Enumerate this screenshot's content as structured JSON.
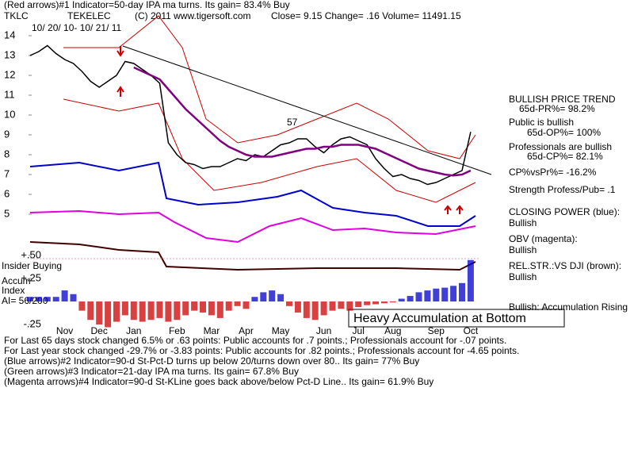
{
  "header": {
    "indicator_1": "(Red arrows)#1 Indicator=50-day IPA ma turns. Its gain= 83.4% Buy",
    "ticker": "TKLC",
    "company": "TEKELEC",
    "source": "(C) 2011  www.tigersoft.com",
    "quote": "Close=  9.15  Change= .16 Volume= 11491.15",
    "date_range": "10/ 20/ 10- 10/ 21/ 11"
  },
  "annotations": {
    "peak_label": "57",
    "box": "Heavy Accumulation at Bottom",
    "insider": "Insider Buying",
    "accum_1": "Accum",
    "accum_2": "Index",
    "ai": "AI= 56/200"
  },
  "right_panel": [
    "BULLISH PRICE TREND",
    "65d-PR%= 98.2%",
    "Public is bullish",
    "65d-OP%= 100%",
    "Professionals are bullish",
    "65d-CP%= 82.1%",
    "CP%vsPr%= -16.2%",
    "Strength Profess/Pub= .1",
    "CLOSING POWER (blue):",
    "Bullish",
    "OBV (magenta):",
    "Bullish",
    "REL.STR.:VS DJI (brown):",
    "Bullish",
    "Bullish: Accumulation Rising"
  ],
  "footer": [
    "For Last 65 days stock changed  6.5% or  .63 points:  Public accounts for  .7 points.;  Professionals account for -.07 points.",
    "For Last year stock changed -29.7% or -3.83 points:  Public accounts for  .82 points.;  Professionals account for -4.65 points.",
    "(Blue arrows)#2 Indicator=90-d St-Pct-D turns up below 20/turns down over 80.. Its gain= 77% Buy",
    "(Green arrows)#3 Indicator=21-day IPA ma turns. Its gain= 67.8% Buy",
    "(Magenta arrows)#4 Indicator=90-d St-KLine goes back above/below Pct-D Line.. Its gain= 61.9% Buy"
  ],
  "chart_data": [
    {
      "type": "line",
      "categories": [
        null,
        null,
        null,
        null,
        "Nov",
        null,
        null,
        null,
        "Dec",
        null,
        null,
        null,
        "Jan",
        null,
        null,
        null,
        null,
        "Feb",
        null,
        null,
        null,
        "Mar",
        null,
        null,
        null,
        "Apr",
        null,
        null,
        null,
        "May",
        null,
        null,
        null,
        null,
        "Jun",
        null,
        null,
        null,
        "Jul",
        null,
        null,
        null,
        "Aug",
        null,
        null,
        null,
        null,
        "Sep",
        null,
        null,
        null,
        "Oct"
      ],
      "series": [
        {
          "color": "#000000",
          "values": [
            13.0,
            13.2,
            13.5,
            13.1,
            12.8,
            12.6,
            12.2,
            11.7,
            11.4,
            11.7,
            12.0,
            12.7,
            12.6,
            12.3,
            12.0,
            11.6,
            8.6,
            8.0,
            7.6,
            7.5,
            7.3,
            7.4,
            7.4,
            7.6,
            7.8,
            7.7,
            8.0,
            7.9,
            8.2,
            8.5,
            8.6,
            8.8,
            8.8,
            8.4,
            8.1,
            8.5,
            8.8,
            8.9,
            8.7,
            8.5,
            7.8,
            7.3,
            6.9,
            7.0,
            6.8,
            6.7,
            6.5,
            6.6,
            6.8,
            7.0,
            7.2,
            9.15
          ]
        },
        {
          "color": "#800080",
          "values": [
            null,
            null,
            null,
            null,
            null,
            null,
            null,
            null,
            null,
            null,
            null,
            null,
            12.4,
            12.2,
            12.0,
            11.8,
            11.3,
            10.8,
            10.3,
            9.9,
            9.5,
            9.1,
            8.7,
            8.4,
            8.2,
            8.0,
            7.9,
            7.9,
            7.9,
            8.0,
            8.1,
            8.2,
            8.3,
            8.3,
            8.4,
            8.4,
            8.5,
            8.5,
            8.5,
            8.4,
            8.3,
            8.1,
            7.9,
            7.7,
            7.5,
            7.3,
            7.2,
            7.1,
            7.0,
            6.95,
            7.0,
            7.2
          ]
        }
      ],
      "ylim": [
        4.5,
        14.5
      ],
      "yticks": [
        14,
        13,
        12,
        11,
        10,
        9,
        8,
        7,
        6,
        5
      ]
    },
    {
      "type": "bar",
      "positive_color": "#0000cc",
      "negative_color": "#cc0000",
      "values": [
        0.05,
        0.05,
        0.05,
        0.05,
        0.12,
        0.08,
        -0.1,
        -0.2,
        -0.25,
        -0.28,
        -0.22,
        -0.15,
        -0.2,
        -0.22,
        -0.2,
        -0.18,
        -0.22,
        -0.2,
        -0.15,
        -0.1,
        -0.12,
        -0.15,
        -0.18,
        -0.1,
        -0.05,
        -0.08,
        0.05,
        0.1,
        0.12,
        0.08,
        -0.05,
        -0.12,
        -0.18,
        -0.2,
        -0.15,
        -0.1,
        -0.08,
        -0.1,
        -0.06,
        -0.04,
        -0.03,
        -0.02,
        -0.01,
        0.03,
        0.06,
        0.1,
        0.12,
        0.14,
        0.15,
        0.17,
        0.2,
        0.45
      ],
      "ylim": [
        -0.33,
        0.55
      ],
      "yticks": [
        {
          "value": 0.5,
          "label": "+.50"
        },
        {
          "value": 0.25,
          "label": "+.25"
        },
        {
          "value": -0.25,
          "label": "-.25"
        }
      ]
    }
  ]
}
